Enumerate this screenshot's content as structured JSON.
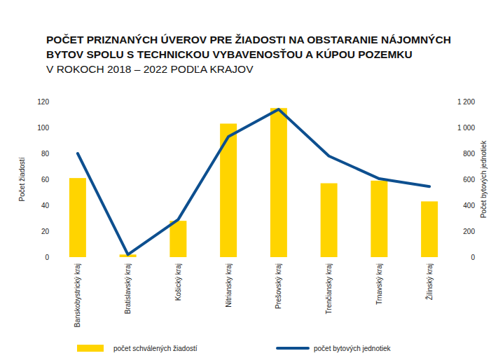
{
  "chart_data": {
    "type": "bar",
    "title": "POČET PRIZNANÝCH ÚVEROV PRE ŽIADOSTI NA OBSTARANIE NÁJOMNÝCH\nBYTOV SPOLU S TECHNICKOU VYBAVENOSŤOU A KÚPOU POZEMKU",
    "subtitle": "V ROKOCH 2018 – 2022 PODĽA KRAJOV",
    "y_label": "Počet žiadostí",
    "y2_label": "Počet bytových jednotiek",
    "categories": [
      "Banskobystrický kraj",
      "Bratislavský kraj",
      "Košický kraj",
      "Nitriansky kraj",
      "Prešovský kraj",
      "Trenčiansky kraj",
      "Trnavský kraj",
      "Žilinský kraj"
    ],
    "series": [
      {
        "name": "počet schválených žiadostí",
        "type": "bar",
        "color": "#ffd400",
        "values": [
          61,
          2,
          28,
          103,
          115,
          57,
          59,
          43
        ]
      },
      {
        "name": "počet bytových jednotiek",
        "type": "line",
        "axis": "y2",
        "color": "#0d4f8f",
        "values": [
          800,
          20,
          290,
          930,
          1140,
          780,
          605,
          545
        ]
      }
    ],
    "ylim": [
      0,
      120
    ],
    "yticks": [
      0,
      20,
      40,
      60,
      80,
      100,
      120
    ],
    "y2lim": [
      0,
      1200
    ],
    "y2ticks": [
      0,
      200,
      400,
      600,
      800,
      {
        "value": 1000,
        "label": "1 000"
      },
      {
        "value": 1200,
        "label": "1 200"
      }
    ],
    "grid": false,
    "legend": "bottom"
  }
}
